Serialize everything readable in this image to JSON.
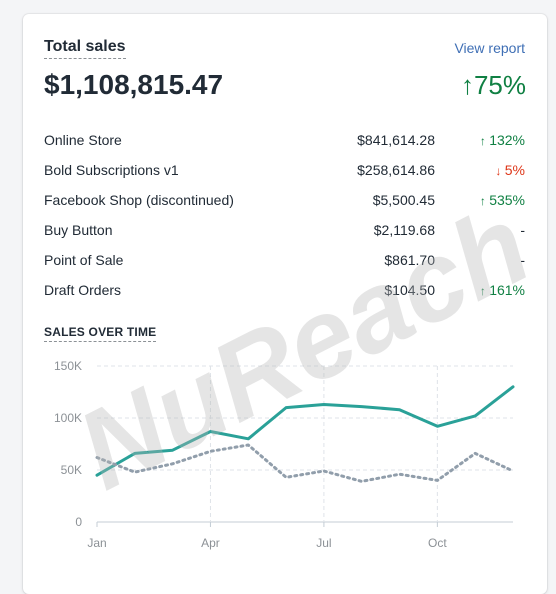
{
  "card": {
    "title": "Total sales",
    "view_report": "View report",
    "total": "$1,108,815.47",
    "total_change": "75%",
    "total_change_direction": "up"
  },
  "channels": [
    {
      "name": "Online Store",
      "amount": "$841,614.28",
      "change": "132%",
      "direction": "up"
    },
    {
      "name": "Bold Subscriptions v1",
      "amount": "$258,614.86",
      "change": "5%",
      "direction": "down"
    },
    {
      "name": "Facebook Shop (discontinued)",
      "amount": "$5,500.45",
      "change": "535%",
      "direction": "up"
    },
    {
      "name": "Buy Button",
      "amount": "$2,119.68",
      "change": "-",
      "direction": "none"
    },
    {
      "name": "Point of Sale",
      "amount": "$861.70",
      "change": "-",
      "direction": "none"
    },
    {
      "name": "Draft Orders",
      "amount": "$104.50",
      "change": "161%",
      "direction": "up"
    }
  ],
  "chart_section_title": "SALES OVER TIME",
  "watermark": "NuReach",
  "colors": {
    "up": "#108043",
    "down": "#de3618",
    "current_series": "#2aa198",
    "previous_series": "#919eab",
    "link": "#3f6fb5"
  },
  "chart_data": {
    "type": "line",
    "title": "SALES OVER TIME",
    "x_ticks": [
      "Jan",
      "Apr",
      "Jul",
      "Oct"
    ],
    "x_tick_index": [
      0,
      3,
      6,
      9
    ],
    "y_ticks": [
      "0",
      "50K",
      "100K",
      "150K"
    ],
    "y_tick_values": [
      0,
      50000,
      100000,
      150000
    ],
    "ylim": [
      0,
      150000
    ],
    "grid": true,
    "series": [
      {
        "style": "solid",
        "values": [
          45000,
          66000,
          69000,
          87000,
          80000,
          110000,
          113000,
          111000,
          108000,
          92000,
          102000,
          130000
        ]
      },
      {
        "style": "dotted",
        "values": [
          62000,
          48000,
          56000,
          68000,
          74000,
          43000,
          49000,
          39000,
          46000,
          40000,
          66000,
          49000
        ]
      }
    ]
  }
}
